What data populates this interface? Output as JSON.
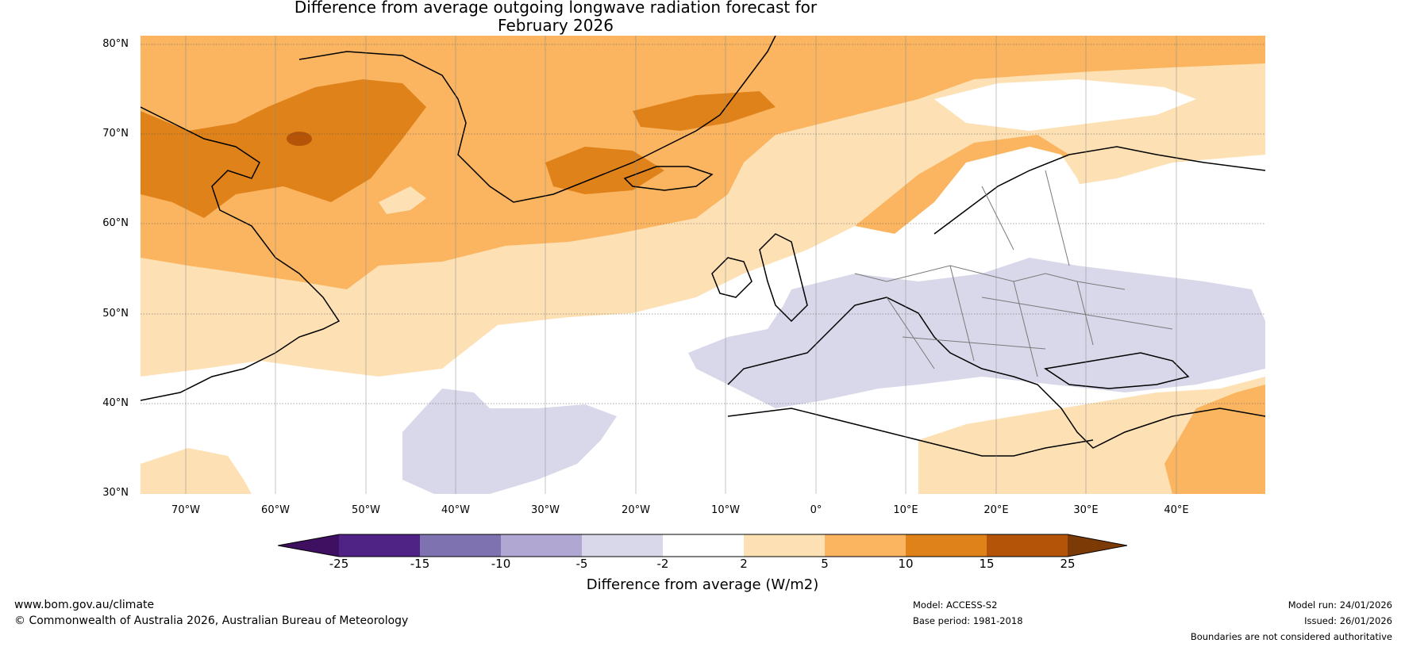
{
  "title": {
    "line1": "Difference from average outgoing longwave radiation forecast for",
    "line2": "February 2026"
  },
  "map": {
    "region": "North Atlantic and Europe",
    "lat_labels": [
      "80°N",
      "70°N",
      "60°N",
      "50°N",
      "40°N",
      "30°N"
    ],
    "lon_labels": [
      "70°W",
      "60°W",
      "50°W",
      "40°W",
      "30°W",
      "20°W",
      "10°W",
      "0°",
      "10°E",
      "20°E",
      "30°E",
      "40°E"
    ]
  },
  "colorbar": {
    "ticks": [
      "-25",
      "-15",
      "-10",
      "-5",
      "-2",
      "2",
      "5",
      "10",
      "15",
      "25"
    ],
    "colors": {
      "below_min": "#3f0f62",
      "bins": [
        "#4f2386",
        "#7f72b0",
        "#b0a8d3",
        "#d8d8ea",
        "#ffffff",
        "#fde1b4",
        "#fbb561",
        "#e0821a",
        "#b35408"
      ],
      "above_max": "#7c3a06"
    },
    "label": "Difference from average (W/m2)"
  },
  "footer": {
    "website": "www.bom.gov.au/climate",
    "copyright": "© Commonwealth of Australia 2026, Australian Bureau of Meteorology",
    "model": "Model: ACCESS-S2",
    "base_period": "Base period: 1981-2018",
    "model_run": "Model run: 24/01/2026",
    "issued": "Issued: 26/01/2026",
    "disclaimer": "Boundaries are not considered authoritative"
  }
}
